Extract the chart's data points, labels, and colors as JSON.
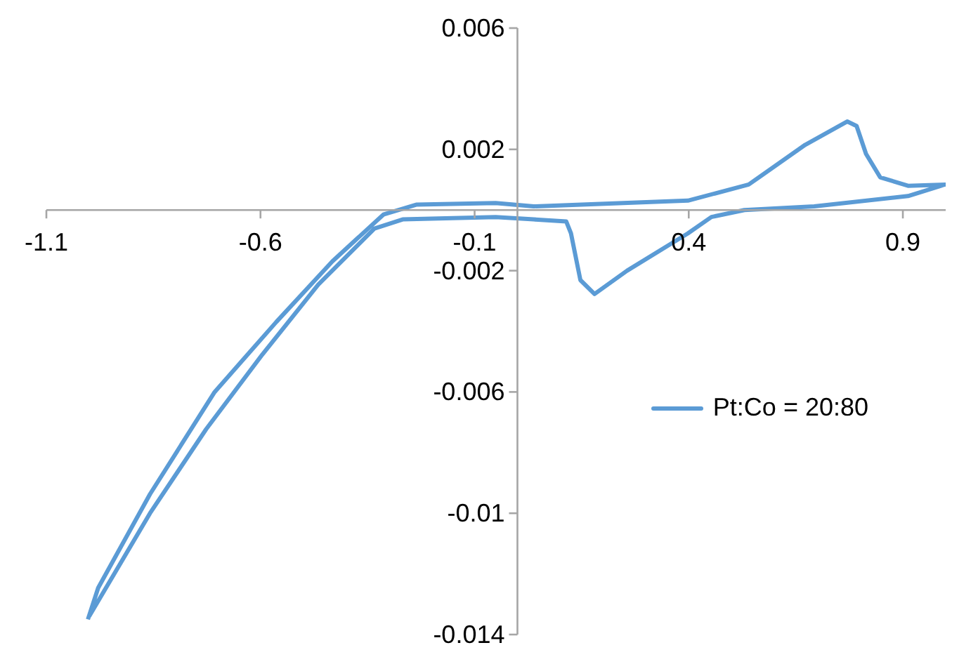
{
  "chart_data": {
    "type": "line",
    "x": [
      -1.003,
      -0.979,
      -0.858,
      -0.707,
      -0.563,
      -0.432,
      -0.313,
      -0.235,
      -0.051,
      0.038,
      0.398,
      0.54,
      0.672,
      0.77,
      0.792,
      0.814,
      0.847,
      0.912,
      0.999,
      0.912,
      0.693,
      0.53,
      0.453,
      0.398,
      0.256,
      0.18,
      0.147,
      0.125,
      0.114,
      0.038,
      -0.051,
      -0.268,
      -0.334,
      -0.465,
      -0.596,
      -0.727,
      -0.858,
      -1.0
    ],
    "series": [
      {
        "name": "Pt:Co = 20:80",
        "color": "#5b9bd5",
        "values": [
          -0.0135,
          -0.01246,
          -0.00937,
          -0.006,
          -0.00369,
          -0.00169,
          -0.00015,
          0.00018,
          0.00023,
          0.00012,
          0.00031,
          0.00084,
          0.00215,
          0.00292,
          0.00277,
          0.00185,
          0.00108,
          0.0008,
          0.00084,
          0.00046,
          0.00012,
          0,
          -0.00023,
          -0.00077,
          -0.002,
          -0.00277,
          -0.00231,
          -0.00077,
          -0.00038,
          -0.00031,
          -0.00023,
          -0.00031,
          -0.00061,
          -0.00246,
          -0.00477,
          -0.00723,
          -0.01,
          -0.0134
        ]
      }
    ],
    "xlim": [
      -1.1,
      1.0
    ],
    "xticks": [
      -1.1,
      -0.6,
      -0.1,
      0.4,
      0.9
    ],
    "ylim": [
      -0.014,
      0.006
    ],
    "yticks": [
      -0.014,
      -0.01,
      -0.006,
      -0.002,
      0.002,
      0.006
    ],
    "grid": false,
    "legend": "right",
    "marker": "none",
    "line_style": "solid"
  }
}
